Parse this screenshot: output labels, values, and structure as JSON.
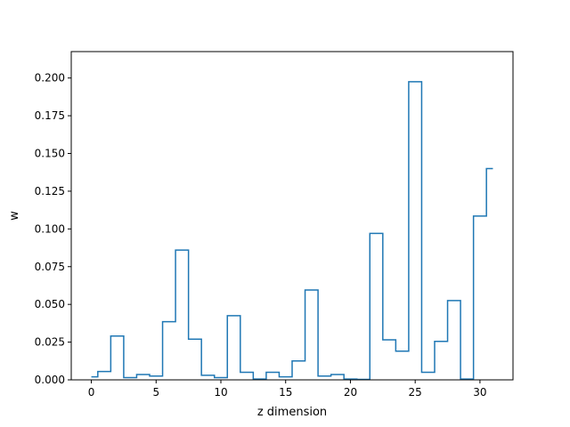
{
  "chart_data": {
    "type": "line",
    "step": "post",
    "xlabel": "z dimension",
    "ylabel": "w",
    "xlim": [
      -1.55,
      32.55
    ],
    "ylim": [
      0,
      0.2175
    ],
    "x_ticks": [
      0,
      5,
      10,
      15,
      20,
      25,
      30
    ],
    "x_tick_labels": [
      "0",
      "5",
      "10",
      "15",
      "20",
      "25",
      "30"
    ],
    "y_ticks": [
      0.0,
      0.025,
      0.05,
      0.075,
      0.1,
      0.125,
      0.15,
      0.175,
      0.2
    ],
    "y_tick_labels": [
      "0.000",
      "0.025",
      "0.050",
      "0.075",
      "0.100",
      "0.125",
      "0.150",
      "0.175",
      "0.200"
    ],
    "grid": false,
    "color": "#1f77b4",
    "series": [
      {
        "x": [
          0,
          1,
          2,
          3,
          4,
          5,
          6,
          7,
          8,
          9,
          10,
          11,
          12,
          13,
          14,
          15,
          16,
          17,
          18,
          19,
          20,
          21,
          22,
          23,
          24,
          25,
          26,
          27,
          28,
          29,
          30,
          31
        ],
        "values": [
          0.002,
          0.0055,
          0.029,
          0.0015,
          0.0035,
          0.0025,
          0.0385,
          0.086,
          0.027,
          0.003,
          0.0015,
          0.0425,
          0.005,
          0.0005,
          0.005,
          0.002,
          0.0125,
          0.0595,
          0.0025,
          0.0035,
          0.0005,
          0.0003,
          0.097,
          0.0265,
          0.019,
          0.1975,
          0.005,
          0.0255,
          0.0525,
          0.0005,
          0.1085,
          0.14
        ]
      }
    ]
  }
}
